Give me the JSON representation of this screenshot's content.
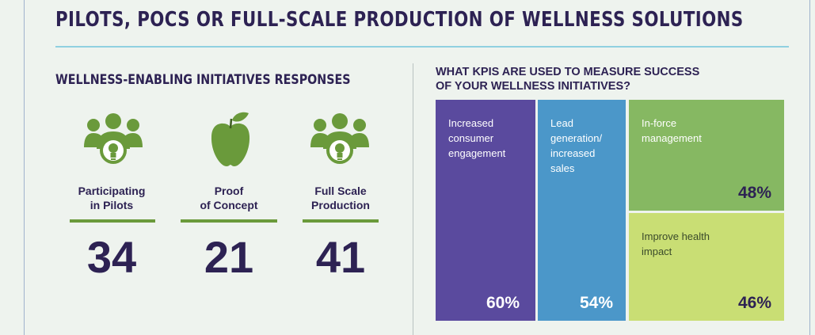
{
  "page": {
    "title": "PILOTS, POCS OR FULL-SCALE PRODUCTION OF WELLNESS SOLUTIONS"
  },
  "left_section": {
    "heading": "WELLNESS-ENABLING INITIATIVES RESPONSES",
    "stats": [
      {
        "icon": "group-lightbulb-icon",
        "label_line1": "Participating",
        "label_line2": "in Pilots",
        "value": "34"
      },
      {
        "icon": "apple-icon",
        "label_line1": "Proof",
        "label_line2": "of Concept",
        "value": "21"
      },
      {
        "icon": "group-lightbulb-icon",
        "label_line1": "Full Scale",
        "label_line2": "Production",
        "value": "41"
      }
    ]
  },
  "kpi_section": {
    "heading_line1": "WHAT KPIS ARE USED TO MEASURE SUCCESS",
    "heading_line2": "OF YOUR WELLNESS INITIATIVES?",
    "tiles": [
      {
        "label": "Increased consumer engagement",
        "value": "60%",
        "color": "#5a4a9e"
      },
      {
        "label": "Lead generation/ increased sales",
        "value": "54%",
        "color": "#4b97c9"
      },
      {
        "label": "In-force management",
        "value": "48%",
        "color": "#86b862"
      },
      {
        "label": "Improve health impact",
        "value": "46%",
        "color": "#c9de74"
      }
    ]
  },
  "colors": {
    "navy": "#2d2253",
    "green_icon": "#6a9a3b",
    "background": "#eef3ee",
    "title_rule": "#8fd0e0"
  }
}
